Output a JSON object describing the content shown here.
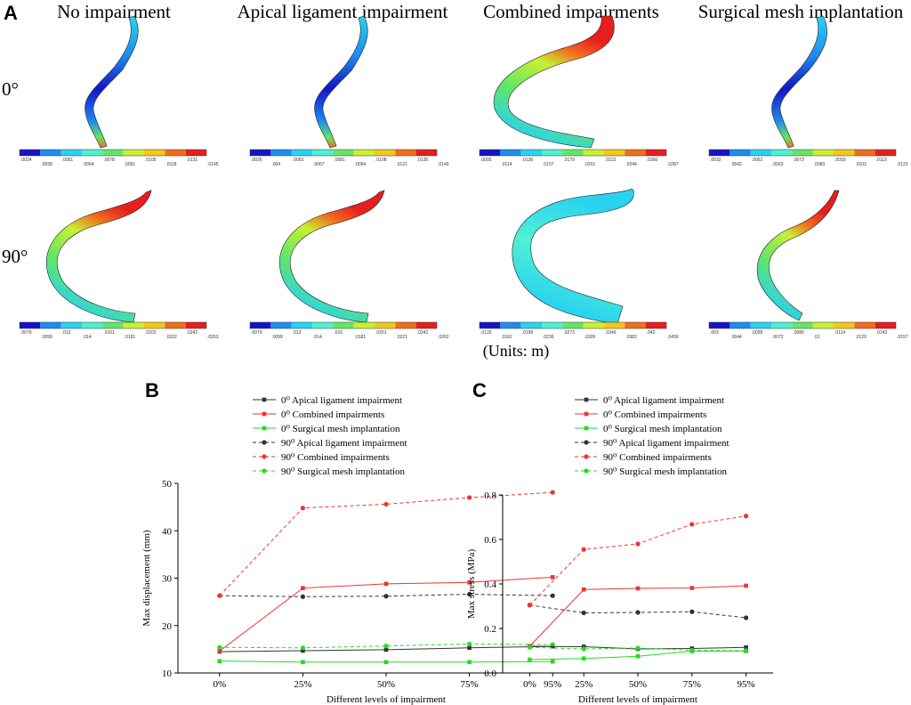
{
  "panel_a": {
    "letter": "A",
    "columns": [
      "No impairment",
      "Apical ligament impairment",
      "Combined impairments",
      "Surgical mesh implantation"
    ],
    "rows": [
      "0°",
      "90°"
    ],
    "units": "(Units: m)",
    "colorbar_colors": [
      "#1414c8",
      "#1e8cf0",
      "#28d2f0",
      "#50f0d2",
      "#64e664",
      "#c8f032",
      "#f0c81e",
      "#f06e1e",
      "#e61e1e"
    ],
    "colorbars": [
      [
        [
          ".0024",
          ".0051",
          ".0078",
          ".0105",
          ".0131"
        ],
        [
          ".0038",
          ".0064",
          ".0091",
          ".0118",
          ".0145"
        ]
      ],
      [
        [
          ".0026",
          ".0053",
          ".0081",
          ".0108",
          ".0135"
        ],
        [
          ".004",
          ".0067",
          ".0094",
          ".0121",
          ".0149"
        ]
      ],
      [
        [
          ".0092",
          ".0136",
          ".0179",
          ".0222",
          ".0266"
        ],
        [
          ".0114",
          ".0157",
          ".0201",
          ".0244",
          ".0287"
        ]
      ],
      [
        [
          ".0032",
          ".0052",
          ".0073",
          ".0093",
          ".0113"
        ],
        [
          ".0042",
          ".0063",
          ".0083",
          ".0103",
          ".0123"
        ]
      ],
      [
        [
          ".0079",
          ".012",
          ".0161",
          ".0202",
          ".0242"
        ],
        [
          ".0099",
          ".014",
          ".0181",
          ".0222",
          ".0263"
        ]
      ],
      [
        [
          ".0079",
          ".012",
          ".016",
          ".0201",
          ".0242"
        ],
        [
          ".0099",
          ".014",
          ".0181",
          ".0221",
          ".0262"
        ]
      ],
      [
        [
          ".0126",
          ".0199",
          ".0273",
          ".0346",
          ".042"
        ],
        [
          ".0162",
          ".0236",
          ".0309",
          ".0383",
          ".0456"
        ]
      ],
      [
        [
          ".003",
          ".0058",
          ".0086",
          ".0114",
          ".0143"
        ],
        [
          ".0044",
          ".0072",
          ".01",
          ".0129",
          ".0157"
        ]
      ]
    ]
  },
  "chart_data": [
    {
      "letter": "B",
      "type": "line",
      "title": "",
      "xlabel": "Different levels of impairment",
      "ylabel": "Max displacement (mm)",
      "categories": [
        "0%",
        "25%",
        "50%",
        "75%",
        "95%"
      ],
      "ylim": [
        10,
        50
      ],
      "yticks": [
        10,
        20,
        30,
        40,
        50
      ],
      "ytick_labels": [
        "10",
        "20",
        "30",
        "40",
        "50"
      ],
      "legend_position": "top",
      "series": [
        {
          "name": "0⁰ Apical ligament impairment",
          "color": "#333333",
          "dashed": false,
          "marker": "square",
          "values": [
            14.5,
            14.7,
            14.9,
            15.3,
            15.6
          ]
        },
        {
          "name": "0⁰ Combined impairments",
          "color": "#ee3333",
          "dashed": false,
          "marker": "square",
          "values": [
            14.6,
            27.9,
            28.8,
            29.1,
            30.2
          ]
        },
        {
          "name": "0⁰ Surgical mesh implantation",
          "color": "#22dd22",
          "dashed": false,
          "marker": "square",
          "values": [
            12.5,
            12.3,
            12.3,
            12.3,
            12.4
          ]
        },
        {
          "name": "90⁰ Apical ligament impairment",
          "color": "#333333",
          "dashed": true,
          "marker": "circle",
          "values": [
            26.3,
            26.1,
            26.2,
            26.6,
            26.3
          ]
        },
        {
          "name": "90⁰ Combined impairments",
          "color": "#ee3333",
          "dashed": true,
          "marker": "circle",
          "values": [
            26.3,
            44.8,
            45.6,
            47.0,
            48.1
          ]
        },
        {
          "name": "90⁰ Surgical mesh implantation",
          "color": "#22dd22",
          "dashed": true,
          "marker": "circle",
          "values": [
            15.4,
            15.3,
            15.7,
            16.1,
            16.0
          ]
        }
      ]
    },
    {
      "letter": "C",
      "type": "line",
      "title": "",
      "xlabel": "Different levels of impairment",
      "ylabel": "Max stress (MPa)",
      "categories": [
        "0%",
        "25%",
        "50%",
        "75%",
        "95%"
      ],
      "ylim": [
        0,
        0.8
      ],
      "yticks": [
        0,
        0.2,
        0.4,
        0.6,
        0.8
      ],
      "ytick_labels": [
        "0.0",
        "0.2",
        "0.4",
        "0.6",
        "0.8"
      ],
      "legend_position": "top",
      "series": [
        {
          "name": "0⁰ Apical ligament impairment",
          "color": "#333333",
          "dashed": false,
          "marker": "square",
          "values": [
            0.12,
            0.118,
            0.108,
            0.11,
            0.115
          ]
        },
        {
          "name": "0⁰ Combined impairments",
          "color": "#ee3333",
          "dashed": false,
          "marker": "square",
          "values": [
            0.12,
            0.375,
            0.38,
            0.382,
            0.392
          ]
        },
        {
          "name": "0⁰ Surgical mesh implantation",
          "color": "#22dd22",
          "dashed": false,
          "marker": "square",
          "values": [
            0.06,
            0.065,
            0.075,
            0.098,
            0.098
          ]
        },
        {
          "name": "90⁰ Apical ligament impairment",
          "color": "#333333",
          "dashed": true,
          "marker": "circle",
          "values": [
            0.305,
            0.27,
            0.272,
            0.275,
            0.248
          ]
        },
        {
          "name": "90⁰ Combined impairments",
          "color": "#ee3333",
          "dashed": true,
          "marker": "circle",
          "values": [
            0.305,
            0.555,
            0.58,
            0.668,
            0.705
          ]
        },
        {
          "name": "90⁰ Surgical mesh implantation",
          "color": "#22dd22",
          "dashed": true,
          "marker": "circle",
          "values": [
            0.115,
            0.108,
            0.112,
            0.102,
            0.1
          ]
        }
      ]
    }
  ]
}
